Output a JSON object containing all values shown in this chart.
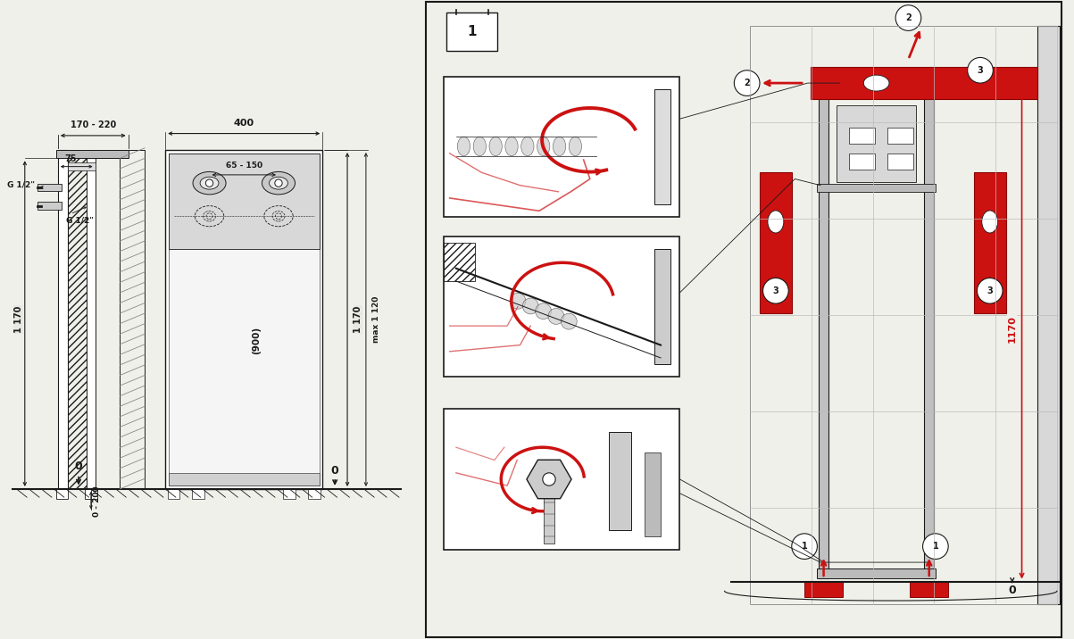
{
  "bg": "#f0f0ea",
  "white": "#ffffff",
  "dark": "#1a1a1a",
  "red": "#cc1111",
  "lgray": "#bbbbbb",
  "mgray": "#888888",
  "dgray": "#555555",
  "hatch_gray": "#999999",
  "panel_bg": "#f8f8f4",
  "dim_170_220": "170 - 220",
  "dim_400": "400",
  "dim_75": "75",
  "dim_g12a": "G 1/2\"",
  "dim_g12b": "G 1/2\"",
  "dim_65_150": "65 - 150",
  "dim_1170": "1 170",
  "dim_900": "(900)",
  "dim_max1120": "max 1 120",
  "dim_0_200": "0 - 200",
  "dim_0": "0",
  "step_label": "1",
  "label_1170_red": "1170",
  "label_0b": "0"
}
